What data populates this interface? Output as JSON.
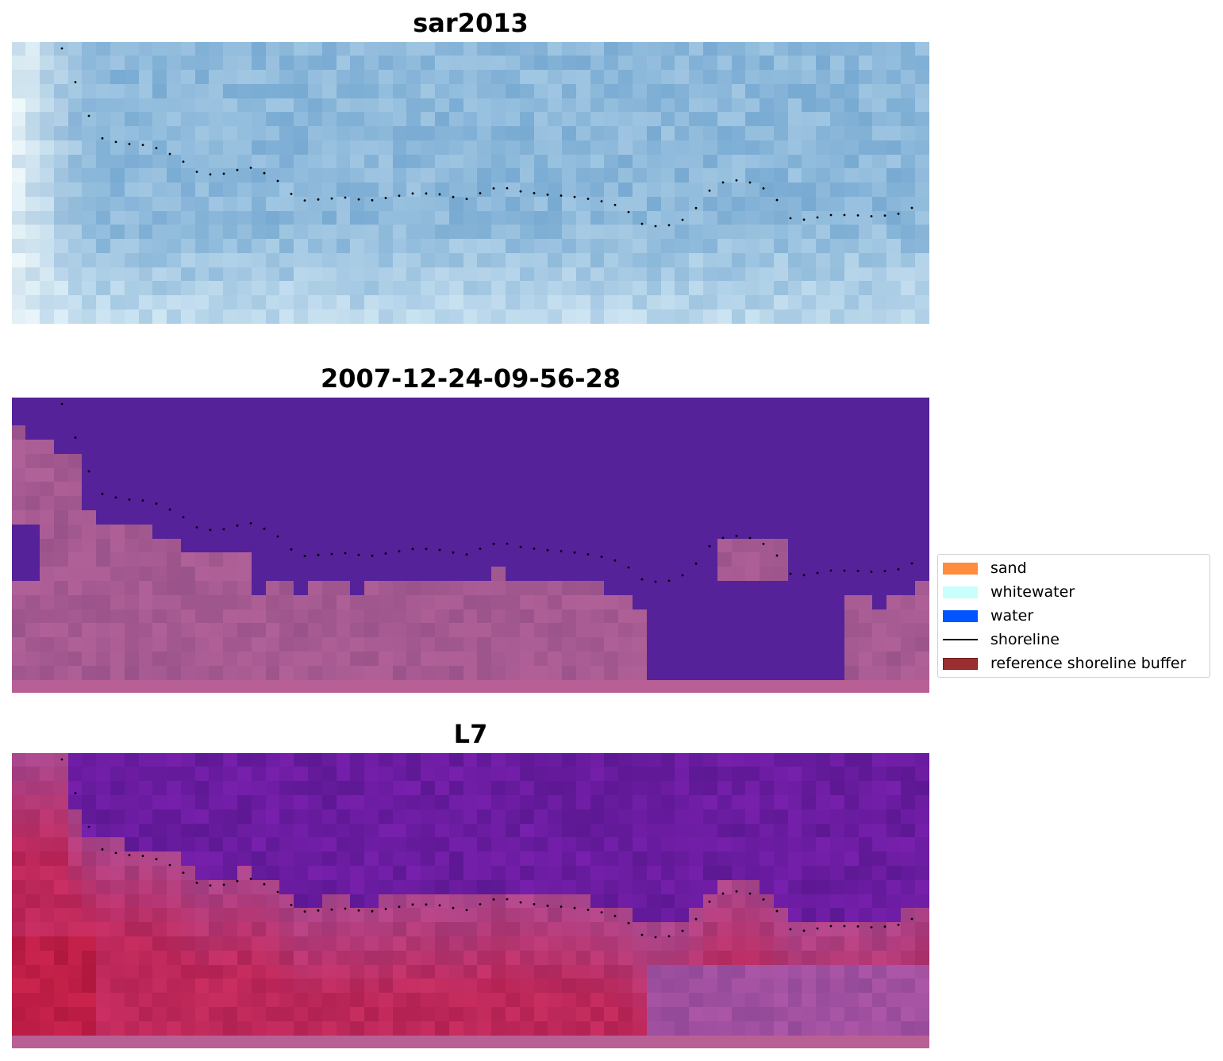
{
  "panels": [
    {
      "title": "sar2013"
    },
    {
      "title": "2007-12-24-09-56-28"
    },
    {
      "title": "L7"
    }
  ],
  "legend": {
    "items": [
      {
        "label": "sand",
        "color": "#ff8c3c",
        "kind": "patch"
      },
      {
        "label": "whitewater",
        "color": "#c8fffc",
        "kind": "patch"
      },
      {
        "label": "water",
        "color": "#0055ff",
        "kind": "patch"
      },
      {
        "label": "shoreline",
        "color": "#000000",
        "kind": "line"
      },
      {
        "label": "reference shoreline buffer",
        "color": "#9a2e2e",
        "kind": "patch"
      }
    ]
  },
  "colors": {
    "sar_base": "#9cc0dc",
    "classified_water": "#55229a",
    "classified_land": "#a45c98",
    "l7_water": "#6a1ea8",
    "l7_land": "#c03a6a"
  }
}
